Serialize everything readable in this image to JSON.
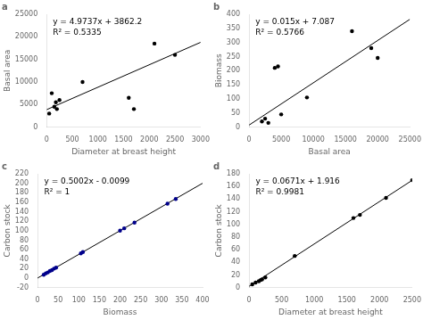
{
  "chart_data": [
    {
      "type": "scatter",
      "title": "a",
      "xlabel": "Diameter at breast height",
      "ylabel": "Basal area",
      "annotations": [
        "y = 4.9737x + 3862.2",
        "R² = 0.5335"
      ],
      "xlim": [
        0,
        3000
      ],
      "ylim": [
        0,
        25000
      ],
      "xticks": [
        0,
        500,
        1000,
        1500,
        2000,
        2500,
        3000
      ],
      "yticks": [
        0,
        5000,
        10000,
        15000,
        20000,
        25000
      ],
      "grid": false,
      "series": [
        {
          "type": "scatter",
          "color": "#000000",
          "x": [
            50,
            100,
            150,
            180,
            200,
            250,
            700,
            1600,
            1700,
            2100,
            2500
          ],
          "values": [
            3000,
            7500,
            4500,
            5500,
            4000,
            6000,
            10000,
            6500,
            4000,
            18500,
            16000
          ]
        },
        {
          "type": "line",
          "color": "#000000",
          "x": [
            0,
            3000
          ],
          "values": [
            3862.2,
            18783.3
          ]
        }
      ]
    },
    {
      "type": "scatter",
      "title": "b",
      "xlabel": "Basal area",
      "ylabel": "Biomass",
      "annotations": [
        "y = 0.015x + 7.087",
        "R² = 0.5766"
      ],
      "xlim": [
        0,
        25000
      ],
      "ylim": [
        0,
        400
      ],
      "xticks": [
        0,
        5000,
        10000,
        15000,
        20000,
        25000
      ],
      "yticks": [
        0,
        50,
        100,
        150,
        200,
        250,
        300,
        350,
        400
      ],
      "grid": false,
      "series": [
        {
          "type": "scatter",
          "color": "#000000",
          "x": [
            2000,
            2500,
            3000,
            4000,
            4500,
            5000,
            9000,
            16000,
            19000,
            20000
          ],
          "values": [
            20,
            30,
            15,
            210,
            215,
            45,
            105,
            340,
            280,
            245
          ]
        },
        {
          "type": "line",
          "color": "#000000",
          "x": [
            0,
            25000
          ],
          "values": [
            7.087,
            382.087
          ]
        }
      ]
    },
    {
      "type": "scatter",
      "title": "c",
      "xlabel": "Biomass",
      "ylabel": "Carbon stock",
      "annotations": [
        "y = 0.5002x - 0.0099",
        "R² = 1"
      ],
      "xlim": [
        0,
        400
      ],
      "ylim": [
        -20,
        220
      ],
      "xticks": [
        0,
        50,
        100,
        150,
        200,
        250,
        300,
        350,
        400
      ],
      "yticks": [
        -20,
        0,
        20,
        40,
        60,
        80,
        100,
        120,
        140,
        160,
        180,
        200,
        220
      ],
      "grid": false,
      "series": [
        {
          "type": "scatter",
          "color": "#00008B",
          "x": [
            15,
            20,
            25,
            30,
            35,
            40,
            45,
            105,
            110,
            200,
            210,
            235,
            315,
            335
          ],
          "values": [
            7,
            10,
            12,
            15,
            17,
            20,
            22,
            52,
            55,
            100,
            105,
            117,
            157,
            167
          ]
        },
        {
          "type": "line",
          "color": "#000000",
          "x": [
            0,
            400
          ],
          "values": [
            -0.0099,
            200.0701
          ]
        }
      ]
    },
    {
      "type": "scatter",
      "title": "d",
      "xlabel": "Diameter at breast height",
      "ylabel": "Carbon stock",
      "annotations": [
        "y = 0.0671x + 1.916",
        "R² = 0.9981"
      ],
      "xlim": [
        0,
        2500
      ],
      "ylim": [
        0,
        180
      ],
      "xticks": [
        0,
        500,
        1000,
        1500,
        2000,
        2500
      ],
      "yticks": [
        0,
        20,
        40,
        60,
        80,
        100,
        120,
        140,
        160,
        180
      ],
      "grid": false,
      "series": [
        {
          "type": "scatter",
          "color": "#000000",
          "x": [
            50,
            100,
            150,
            180,
            200,
            250,
            700,
            1600,
            1700,
            2100,
            2500
          ],
          "values": [
            5,
            8,
            10,
            12,
            13,
            16,
            50,
            110,
            115,
            142,
            170
          ]
        },
        {
          "type": "line",
          "color": "#000000",
          "x": [
            0,
            2500
          ],
          "values": [
            1.916,
            169.666
          ]
        }
      ]
    }
  ]
}
